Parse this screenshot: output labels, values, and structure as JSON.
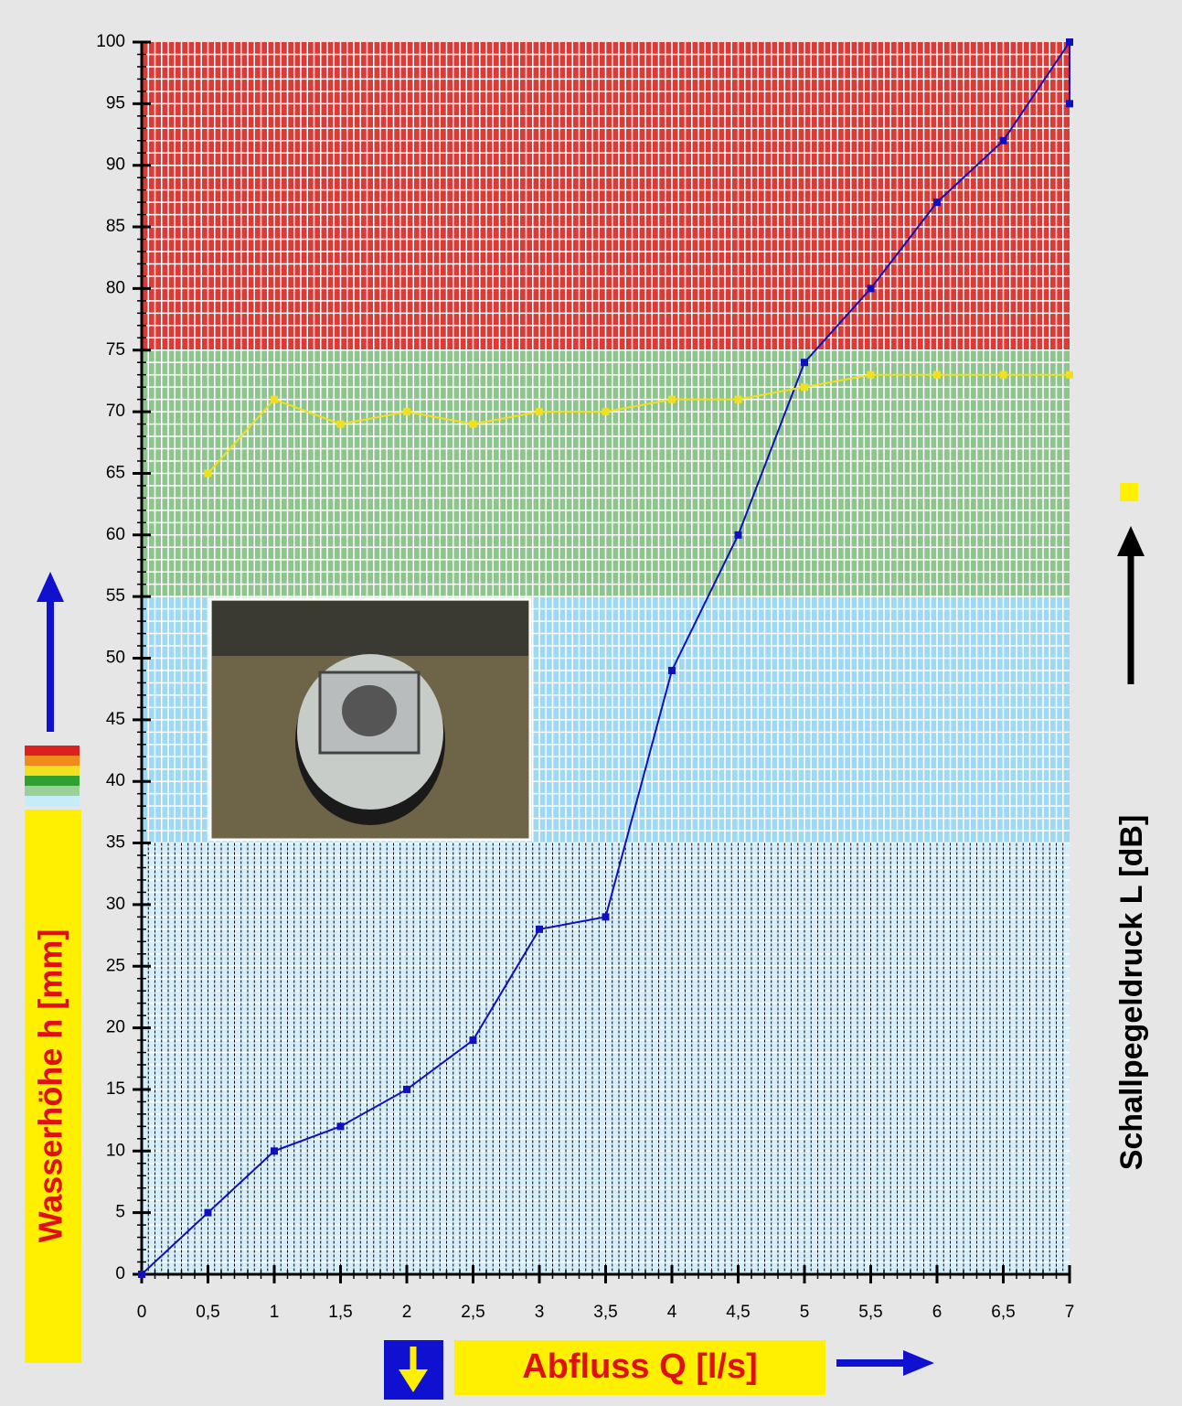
{
  "chart_data": {
    "type": "line",
    "y_title": "Wasserhöhe h [mm]",
    "x_title": "Abfluss Q [l/s]",
    "y2_title": "Schallpegeldruck L [dB]",
    "xlim": [
      0,
      7
    ],
    "ylim": [
      0,
      100
    ],
    "xticks": [
      0,
      {
        "value": 0.5,
        "label": "0,5"
      },
      1,
      {
        "value": 1.5,
        "label": "1,5"
      },
      2,
      {
        "value": 2.5,
        "label": "2,5"
      },
      3,
      {
        "value": 3.5,
        "label": "3,5"
      },
      4,
      {
        "value": 4.5,
        "label": "4,5"
      },
      5,
      {
        "value": 5.5,
        "label": "5,5"
      },
      6,
      {
        "value": 6.5,
        "label": "6,5"
      },
      7
    ],
    "yticks": [
      0,
      5,
      10,
      15,
      20,
      25,
      30,
      35,
      40,
      45,
      50,
      55,
      60,
      65,
      70,
      75,
      80,
      85,
      90,
      95,
      100
    ],
    "bands": [
      {
        "range": [
          0,
          35
        ],
        "color": "#d6eefa"
      },
      {
        "range": [
          35,
          55
        ],
        "color": "#9fd8f2"
      },
      {
        "range": [
          55,
          75
        ],
        "color": "#8fc48f"
      },
      {
        "range": [
          75,
          100
        ],
        "color": "#dc3a36"
      }
    ],
    "series": [
      {
        "color": "#1010c0",
        "x": [
          0,
          0.5,
          1,
          1.5,
          2,
          2.5,
          3,
          3.5,
          4,
          4.5,
          5,
          5.5,
          6,
          6.5,
          7,
          7
        ],
        "values": [
          0,
          5,
          10,
          12,
          15,
          19,
          28,
          29,
          49,
          60,
          74,
          80,
          87,
          92,
          100,
          95
        ]
      },
      {
        "color": "#f0e020",
        "x": [
          0.5,
          1,
          1.5,
          2,
          2.5,
          3,
          3.5,
          4,
          4.5,
          5,
          5.5,
          6,
          6.5,
          7
        ],
        "values": [
          65,
          71,
          69,
          70,
          69,
          70,
          70,
          71,
          71,
          72,
          73,
          73,
          73,
          73
        ]
      }
    ]
  }
}
